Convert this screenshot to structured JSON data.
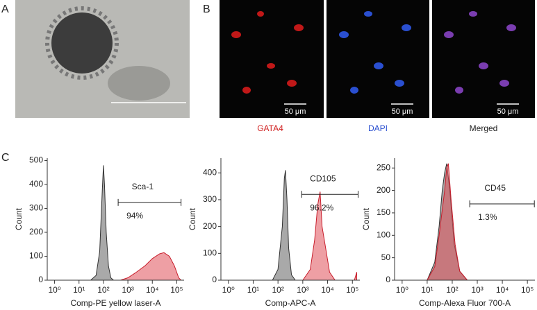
{
  "panels": {
    "a": "A",
    "b": "B",
    "c": "C"
  },
  "micrograph_b": {
    "channels": [
      "GATA4",
      "DAPI",
      "Merged"
    ],
    "scale_bars": [
      "50 μm",
      "50 μm",
      "50 μm"
    ]
  },
  "chart_data": [
    {
      "type": "area",
      "xlabel": "Comp-PE yellow laser-A",
      "ylabel": "Count",
      "log_x": true,
      "xlim": [
        0.5,
        200000
      ],
      "ylim": [
        0,
        510
      ],
      "xticks": [
        {
          "value": 1,
          "label": "10⁰"
        },
        {
          "value": 10,
          "label": "10¹"
        },
        {
          "value": 100,
          "label": "10²"
        },
        {
          "value": 1000,
          "label": "10³"
        },
        {
          "value": 10000,
          "label": "10⁴"
        },
        {
          "value": 100000,
          "label": "10⁵"
        }
      ],
      "yticks": [
        0,
        100,
        200,
        300,
        400,
        500
      ],
      "series": [
        {
          "color": "#a0a0a0",
          "x": [
            30,
            50,
            70,
            90,
            100,
            110,
            130,
            160,
            200,
            260
          ],
          "values": [
            0,
            20,
            120,
            380,
            480,
            400,
            200,
            60,
            10,
            0
          ]
        },
        {
          "color": "#e0505a",
          "x": [
            500,
            1000,
            2000,
            5000,
            10000,
            20000,
            30000,
            50000,
            80000,
            120000,
            150000
          ],
          "values": [
            0,
            10,
            30,
            60,
            90,
            110,
            115,
            100,
            60,
            10,
            0
          ]
        }
      ],
      "gate": {
        "label": "Sca-1",
        "percent": "94%",
        "x_range": [
          400,
          150000
        ],
        "y": 325
      }
    },
    {
      "type": "area",
      "xlabel": "Comp-APC-A",
      "ylabel": "Count",
      "log_x": true,
      "xlim": [
        0.5,
        200000
      ],
      "ylim": [
        0,
        455
      ],
      "xticks": [
        {
          "value": 1,
          "label": "10⁰"
        },
        {
          "value": 10,
          "label": "10¹"
        },
        {
          "value": 100,
          "label": "10²"
        },
        {
          "value": 1000,
          "label": "10³"
        },
        {
          "value": 10000,
          "label": "10⁴"
        },
        {
          "value": 100000,
          "label": "10⁵"
        }
      ],
      "yticks": [
        0,
        100,
        200,
        300,
        400
      ],
      "series": [
        {
          "color": "#a0a0a0",
          "x": [
            60,
            100,
            150,
            180,
            200,
            230,
            270,
            350,
            500
          ],
          "values": [
            0,
            40,
            200,
            380,
            410,
            300,
            120,
            20,
            0
          ]
        },
        {
          "color": "#e0505a",
          "x": [
            1000,
            2000,
            3000,
            4000,
            5000,
            6000,
            8000,
            12000,
            20000,
            120000,
            150000
          ],
          "values": [
            0,
            40,
            150,
            280,
            330,
            200,
            130,
            30,
            0,
            0,
            30
          ]
        }
      ],
      "gate": {
        "label": "CD105",
        "percent": "96.2%",
        "x_range": [
          900,
          170000
        ],
        "y": 320
      }
    },
    {
      "type": "area",
      "xlabel": "Comp-Alexa Fluor 700-A",
      "ylabel": "Count",
      "log_x": true,
      "xlim": [
        0.5,
        200000
      ],
      "ylim": [
        0,
        272
      ],
      "xticks": [
        {
          "value": 1,
          "label": "10⁰"
        },
        {
          "value": 10,
          "label": "10¹"
        },
        {
          "value": 100,
          "label": "10²"
        },
        {
          "value": 1000,
          "label": "10³"
        },
        {
          "value": 10000,
          "label": "10⁴"
        },
        {
          "value": 100000,
          "label": "10⁵"
        }
      ],
      "yticks": [
        0,
        50,
        100,
        150,
        200,
        250
      ],
      "series": [
        {
          "color": "#a0a0a0",
          "x": [
            10,
            20,
            30,
            40,
            50,
            60,
            80,
            120,
            200,
            400
          ],
          "values": [
            0,
            40,
            120,
            200,
            240,
            260,
            200,
            80,
            20,
            0
          ]
        },
        {
          "color": "#e0505a",
          "x": [
            10,
            20,
            30,
            50,
            60,
            70,
            90,
            130,
            200,
            400
          ],
          "values": [
            0,
            30,
            100,
            200,
            250,
            260,
            180,
            80,
            20,
            0
          ]
        }
      ],
      "gate": {
        "label": "CD45",
        "percent": "1.3%",
        "x_range": [
          500,
          190000
        ],
        "y": 170
      }
    }
  ]
}
